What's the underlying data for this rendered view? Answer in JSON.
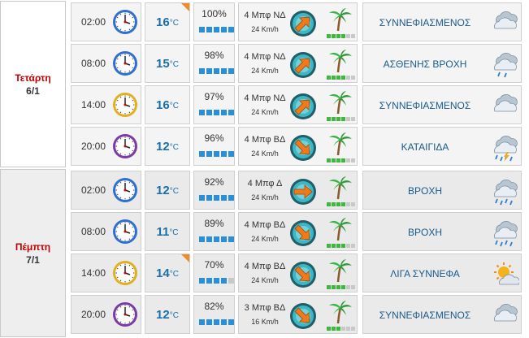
{
  "days": [
    {
      "name": "Τετάρτη",
      "date": "6/1",
      "rows": [
        {
          "time": "02:00",
          "clock_style": "blue",
          "temp": "16",
          "unit": "°C",
          "corner": true,
          "humidity": "100%",
          "hum_level": 5,
          "wind_force": "4 Μπφ ΝΔ",
          "wind_speed": "24 Km/h",
          "wind_dir": "NE-arrow",
          "bft_level": 4,
          "condition": "ΣΥΝΝΕΦΙΑΣΜΕΝΟΣ",
          "icon": "cloudy-icon"
        },
        {
          "time": "08:00",
          "clock_style": "blue",
          "temp": "15",
          "unit": "°C",
          "corner": false,
          "humidity": "98%",
          "hum_level": 5,
          "wind_force": "4 Μπφ ΝΔ",
          "wind_speed": "24 Km/h",
          "wind_dir": "NE-arrow",
          "bft_level": 4,
          "condition": "ΑΣΘΕΝΗΣ ΒΡΟΧΗ",
          "icon": "light-rain-icon"
        },
        {
          "time": "14:00",
          "clock_style": "yellow",
          "temp": "16",
          "unit": "°C",
          "corner": false,
          "humidity": "97%",
          "hum_level": 5,
          "wind_force": "4 Μπφ ΝΔ",
          "wind_speed": "24 Km/h",
          "wind_dir": "NE-arrow",
          "bft_level": 4,
          "condition": "ΣΥΝΝΕΦΙΑΣΜΕΝΟΣ",
          "icon": "cloudy-icon"
        },
        {
          "time": "20:00",
          "clock_style": "purple",
          "temp": "12",
          "unit": "°C",
          "corner": false,
          "humidity": "96%",
          "hum_level": 5,
          "wind_force": "4 Μπφ ΒΔ",
          "wind_speed": "24 Km/h",
          "wind_dir": "SE-arrow",
          "bft_level": 4,
          "condition": "ΚΑΤΑΙΓΙΔΑ",
          "icon": "thunderstorm-icon"
        }
      ]
    },
    {
      "name": "Πέμπτη",
      "date": "7/1",
      "rows": [
        {
          "time": "02:00",
          "clock_style": "blue",
          "temp": "12",
          "unit": "°C",
          "corner": false,
          "humidity": "92%",
          "hum_level": 5,
          "wind_force": "4 Μπφ Δ",
          "wind_speed": "24 Km/h",
          "wind_dir": "E-arrow",
          "bft_level": 4,
          "condition": "ΒΡΟΧΗ",
          "icon": "rain-icon"
        },
        {
          "time": "08:00",
          "clock_style": "blue",
          "temp": "11",
          "unit": "°C",
          "corner": false,
          "humidity": "89%",
          "hum_level": 5,
          "wind_force": "4 Μπφ ΒΔ",
          "wind_speed": "24 Km/h",
          "wind_dir": "SE-arrow",
          "bft_level": 4,
          "condition": "ΒΡΟΧΗ",
          "icon": "rain-icon"
        },
        {
          "time": "14:00",
          "clock_style": "yellow",
          "temp": "14",
          "unit": "°C",
          "corner": true,
          "humidity": "70%",
          "hum_level": 4,
          "wind_force": "4 Μπφ ΒΔ",
          "wind_speed": "24 Km/h",
          "wind_dir": "SE-arrow",
          "bft_level": 4,
          "condition": "ΛΙΓΑ ΣΥΝΝΕΦΑ",
          "icon": "partly-cloudy-icon"
        },
        {
          "time": "20:00",
          "clock_style": "purple",
          "temp": "12",
          "unit": "°C",
          "corner": false,
          "humidity": "82%",
          "hum_level": 5,
          "wind_force": "3 Μπφ ΒΔ",
          "wind_speed": "16 Km/h",
          "wind_dir": "SE-arrow",
          "bft_level": 3,
          "condition": "ΣΥΝΝΕΦΙΑΣΜΕΝΟΣ",
          "icon": "cloudy-icon"
        }
      ]
    }
  ],
  "colors": {
    "temperature": "#1a6fa8",
    "day_name": "#c00000",
    "condition": "#1a5a8a",
    "humidity_on": "#2a8fd4",
    "beaufort_on": "#3cb83c",
    "corner": "#f08a2a"
  }
}
